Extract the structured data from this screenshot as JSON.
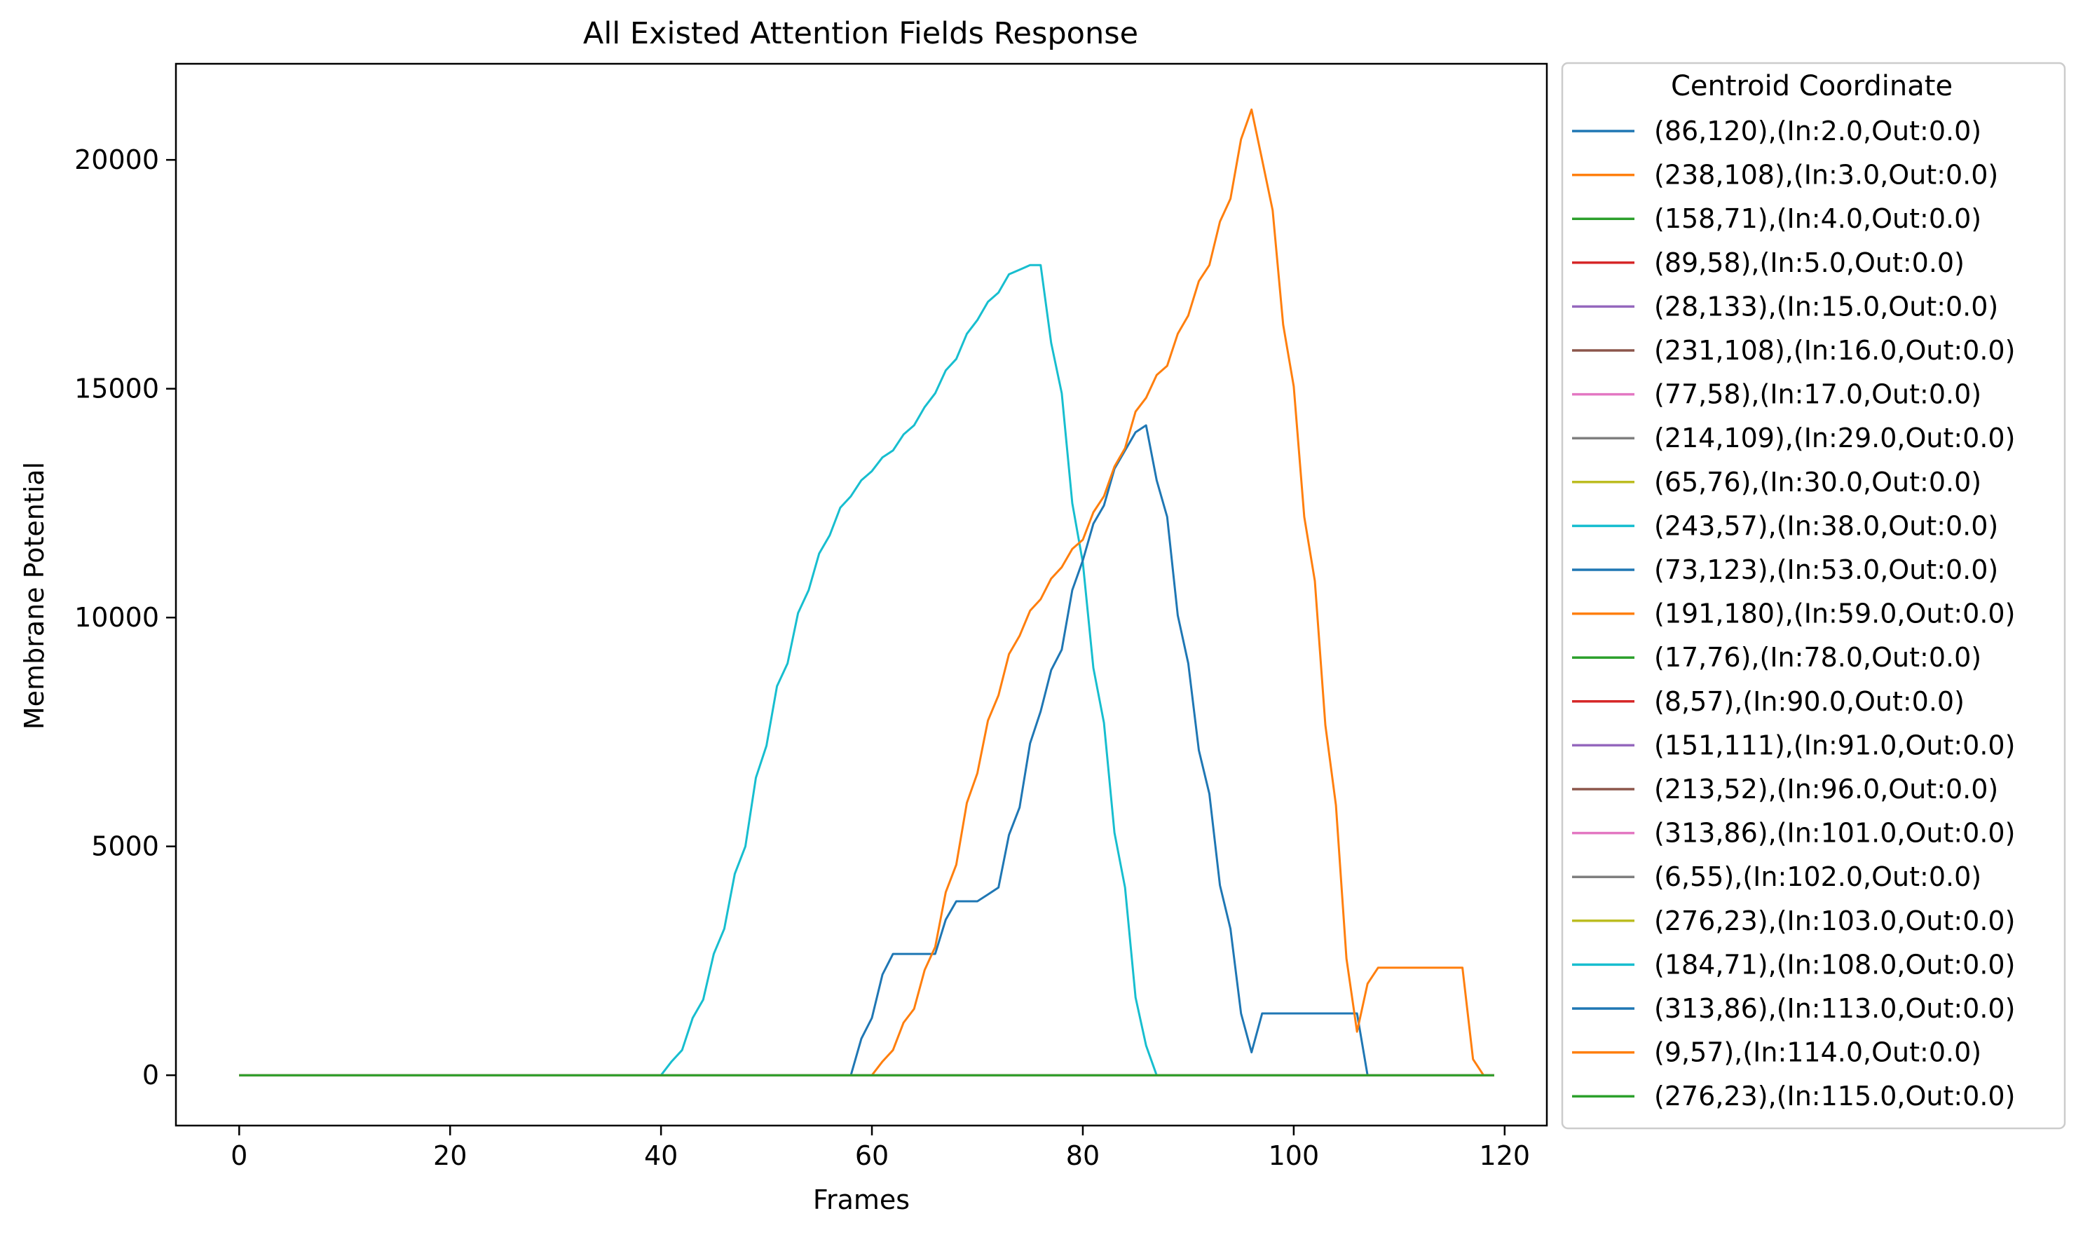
{
  "chart_data": {
    "type": "line",
    "title": "All Existed Attention Fields Response",
    "xlabel": "Frames",
    "ylabel": "Membrane Potential",
    "xlim": [
      -6,
      124
    ],
    "ylim": [
      -1100,
      22100
    ],
    "xticks": [
      0,
      20,
      40,
      60,
      80,
      100,
      120
    ],
    "yticks": [
      0,
      5000,
      10000,
      15000,
      20000
    ],
    "grid": false,
    "legend": {
      "title": "Centroid Coordinate",
      "placement": "outside-right"
    },
    "series": [
      {
        "name": "(86,120),(In:2.0,Out:0.0)",
        "color": "#1f77b4",
        "x": [
          0,
          119
        ],
        "y": [
          0,
          0
        ]
      },
      {
        "name": "(238,108),(In:3.0,Out:0.0)",
        "color": "#ff7f0e",
        "x": [
          0,
          119
        ],
        "y": [
          0,
          0
        ]
      },
      {
        "name": "(158,71),(In:4.0,Out:0.0)",
        "color": "#2ca02c",
        "x": [
          0,
          119
        ],
        "y": [
          0,
          0
        ]
      },
      {
        "name": "(89,58),(In:5.0,Out:0.0)",
        "color": "#d62728",
        "x": [
          0,
          119
        ],
        "y": [
          0,
          0
        ]
      },
      {
        "name": "(28,133),(In:15.0,Out:0.0)",
        "color": "#9467bd",
        "x": [
          0,
          119
        ],
        "y": [
          0,
          0
        ]
      },
      {
        "name": "(231,108),(In:16.0,Out:0.0)",
        "color": "#8c564b",
        "x": [
          0,
          119
        ],
        "y": [
          0,
          0
        ]
      },
      {
        "name": "(77,58),(In:17.0,Out:0.0)",
        "color": "#e377c2",
        "x": [
          0,
          119
        ],
        "y": [
          0,
          0
        ]
      },
      {
        "name": "(214,109),(In:29.0,Out:0.0)",
        "color": "#7f7f7f",
        "x": [
          0,
          119
        ],
        "y": [
          0,
          0
        ]
      },
      {
        "name": "(65,76),(In:30.0,Out:0.0)",
        "color": "#bcbd22",
        "x": [
          0,
          119
        ],
        "y": [
          0,
          0
        ]
      },
      {
        "name": "(243,57),(In:38.0,Out:0.0)",
        "color": "#17becf",
        "x": [
          0,
          40,
          41,
          42,
          43,
          44,
          45,
          46,
          47,
          48,
          49,
          50,
          51,
          52,
          53,
          54,
          55,
          56,
          57,
          58,
          59,
          60,
          61,
          62,
          63,
          64,
          65,
          66,
          67,
          68,
          69,
          70,
          71,
          72,
          73,
          74,
          75,
          76,
          77,
          78,
          79,
          80,
          81,
          82,
          83,
          84,
          85,
          86,
          87,
          119
        ],
        "y": [
          0,
          0,
          300,
          550,
          1250,
          1650,
          2650,
          3200,
          4400,
          5000,
          6500,
          7200,
          8500,
          9000,
          10100,
          10600,
          11400,
          11800,
          12400,
          12650,
          13000,
          13200,
          13500,
          13650,
          14000,
          14200,
          14600,
          14900,
          15400,
          15650,
          16200,
          16500,
          16900,
          17100,
          17500,
          17600,
          17700,
          17700,
          16000,
          14900,
          12500,
          11200,
          8900,
          7700,
          5300,
          4100,
          1700,
          650,
          0,
          0
        ]
      },
      {
        "name": "(73,123),(In:53.0,Out:0.0)",
        "color": "#1f77b4",
        "x": [
          0,
          58,
          59,
          60,
          61,
          62,
          63,
          64,
          65,
          66,
          67,
          68,
          69,
          70,
          71,
          72,
          73,
          74,
          75,
          76,
          77,
          78,
          79,
          80,
          81,
          82,
          83,
          84,
          85,
          86,
          87,
          88,
          89,
          90,
          91,
          92,
          93,
          94,
          95,
          96,
          97,
          98,
          99,
          100,
          101,
          102,
          103,
          104,
          105,
          106,
          107,
          119
        ],
        "y": [
          0,
          0,
          800,
          1250,
          2200,
          2650,
          2650,
          2650,
          2650,
          2650,
          3400,
          3800,
          3800,
          3800,
          3950,
          4100,
          5250,
          5850,
          7250,
          7950,
          8850,
          9300,
          10600,
          11250,
          12050,
          12450,
          13250,
          13650,
          14050,
          14200,
          13000,
          12200,
          10050,
          9000,
          7100,
          6150,
          4150,
          3200,
          1350,
          500,
          1350,
          1350,
          1350,
          1350,
          1350,
          1350,
          1350,
          1350,
          1350,
          1350,
          0,
          0
        ]
      },
      {
        "name": "(191,180),(In:59.0,Out:0.0)",
        "color": "#ff7f0e",
        "x": [
          0,
          60,
          61,
          62,
          63,
          64,
          65,
          66,
          67,
          68,
          69,
          70,
          71,
          72,
          73,
          74,
          75,
          76,
          77,
          78,
          79,
          80,
          81,
          82,
          83,
          84,
          85,
          86,
          87,
          88,
          89,
          90,
          91,
          92,
          93,
          94,
          95,
          96,
          97,
          98,
          99,
          100,
          101,
          102,
          103,
          104,
          105,
          106,
          107,
          108,
          109,
          110,
          111,
          112,
          113,
          114,
          115,
          116,
          117,
          118,
          119
        ],
        "y": [
          0,
          0,
          300,
          550,
          1150,
          1450,
          2300,
          2800,
          4000,
          4600,
          5950,
          6600,
          7750,
          8300,
          9200,
          9600,
          10150,
          10400,
          10850,
          11100,
          11500,
          11700,
          12300,
          12650,
          13300,
          13700,
          14500,
          14800,
          15300,
          15500,
          16200,
          16600,
          17350,
          17700,
          18650,
          19150,
          20450,
          21100,
          20000,
          18900,
          16400,
          15050,
          12200,
          10800,
          7650,
          5900,
          2550,
          950,
          2000,
          2350,
          2350,
          2350,
          2350,
          2350,
          2350,
          2350,
          2350,
          2350,
          350,
          0,
          0
        ]
      },
      {
        "name": "(17,76),(In:78.0,Out:0.0)",
        "color": "#2ca02c",
        "x": [
          0,
          119
        ],
        "y": [
          0,
          0
        ]
      },
      {
        "name": "(8,57),(In:90.0,Out:0.0)",
        "color": "#d62728",
        "x": [
          0,
          119
        ],
        "y": [
          0,
          0
        ]
      },
      {
        "name": "(151,111),(In:91.0,Out:0.0)",
        "color": "#9467bd",
        "x": [
          0,
          119
        ],
        "y": [
          0,
          0
        ]
      },
      {
        "name": "(213,52),(In:96.0,Out:0.0)",
        "color": "#8c564b",
        "x": [
          0,
          119
        ],
        "y": [
          0,
          0
        ]
      },
      {
        "name": "(313,86),(In:101.0,Out:0.0)",
        "color": "#e377c2",
        "x": [
          0,
          119
        ],
        "y": [
          0,
          0
        ]
      },
      {
        "name": "(6,55),(In:102.0,Out:0.0)",
        "color": "#7f7f7f",
        "x": [
          0,
          119
        ],
        "y": [
          0,
          0
        ]
      },
      {
        "name": "(276,23),(In:103.0,Out:0.0)",
        "color": "#bcbd22",
        "x": [
          0,
          119
        ],
        "y": [
          0,
          0
        ]
      },
      {
        "name": "(184,71),(In:108.0,Out:0.0)",
        "color": "#17becf",
        "x": [
          0,
          119
        ],
        "y": [
          0,
          0
        ]
      },
      {
        "name": "(313,86),(In:113.0,Out:0.0)",
        "color": "#1f77b4",
        "x": [
          0,
          119
        ],
        "y": [
          0,
          0
        ]
      },
      {
        "name": "(9,57),(In:114.0,Out:0.0)",
        "color": "#ff7f0e",
        "x": [
          0,
          119
        ],
        "y": [
          0,
          0
        ]
      },
      {
        "name": "(276,23),(In:115.0,Out:0.0)",
        "color": "#2ca02c",
        "x": [
          0,
          119
        ],
        "y": [
          0,
          0
        ]
      }
    ]
  }
}
